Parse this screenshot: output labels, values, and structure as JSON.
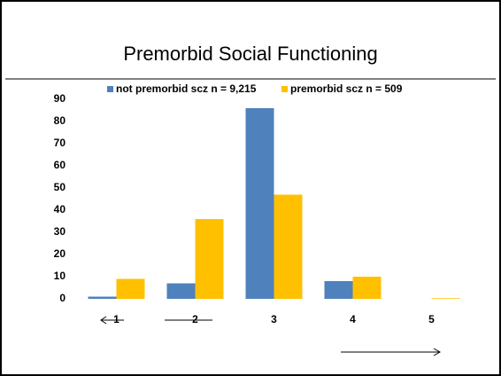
{
  "chart_data": {
    "type": "bar",
    "title": "Premorbid Social Functioning",
    "categories": [
      "1",
      "2",
      "3",
      "4",
      "5"
    ],
    "series": [
      {
        "name": "not premorbid scz n = 9,215",
        "color": "#4f81bd",
        "values": [
          1,
          7,
          86,
          8,
          0
        ]
      },
      {
        "name": "premorbid scz n = 509",
        "color": "#ffc000",
        "values": [
          9,
          36,
          47,
          10,
          0.3
        ]
      }
    ],
    "ylim": [
      0,
      90
    ],
    "yticks": [
      0,
      10,
      20,
      30,
      40,
      50,
      60,
      70,
      80,
      90
    ],
    "grid": false,
    "legend": "top"
  }
}
